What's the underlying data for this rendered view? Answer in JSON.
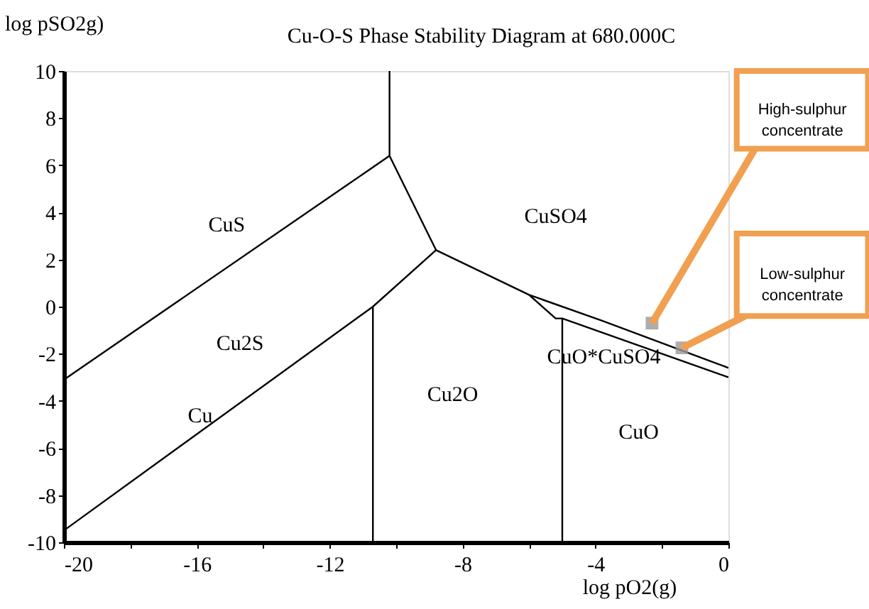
{
  "chart_data": {
    "type": "line",
    "title": "Cu-O-S Phase Stability Diagram at 680.000C",
    "xlabel": "log pO2(g)",
    "ylabel": "log pSO2g)",
    "xlim": [
      -20,
      0
    ],
    "ylim": [
      -10,
      10
    ],
    "xticks": [
      -20,
      {
        "value": -18,
        "label": null
      },
      -16,
      {
        "value": -14,
        "label": null
      },
      -12,
      {
        "value": -10,
        "label": null
      },
      -8,
      {
        "value": -6,
        "label": null
      },
      -4,
      {
        "value": -2,
        "label": null
      },
      0
    ],
    "yticks": [
      -10,
      -8,
      -6,
      -4,
      -2,
      0,
      2,
      4,
      6,
      8,
      10
    ],
    "grid": false,
    "series": [
      {
        "color": "#000000",
        "x": [
          -20,
          -10.2
        ],
        "values": [
          -3.1,
          6.4
        ]
      },
      {
        "color": "#000000",
        "x": [
          -10.2,
          -10.2
        ],
        "values": [
          6.4,
          10
        ]
      },
      {
        "color": "#000000",
        "x": [
          -10.2,
          -8.8
        ],
        "values": [
          6.4,
          2.4
        ]
      },
      {
        "color": "#000000",
        "x": [
          -20,
          -10.7,
          -8.8
        ],
        "values": [
          -9.5,
          0.0,
          2.4
        ]
      },
      {
        "color": "#000000",
        "x": [
          -10.7,
          -10.7
        ],
        "values": [
          0.0,
          -10
        ]
      },
      {
        "color": "#000000",
        "x": [
          -8.8,
          -6.0,
          -3.8,
          0
        ],
        "values": [
          2.4,
          0.5,
          -0.6,
          -2.6
        ]
      },
      {
        "color": "#000000",
        "x": [
          -6.0,
          -5.2,
          -5.0,
          -5.0
        ],
        "values": [
          0.5,
          -0.5,
          -0.5,
          -10
        ]
      },
      {
        "color": "#000000",
        "x": [
          -5.0,
          0
        ],
        "values": [
          -0.5,
          -3.0
        ]
      },
      {
        "type": "scatter",
        "name": "High-sulphur concentrate",
        "color": "#999999",
        "marker": "square",
        "x": [
          -2.3
        ],
        "values": [
          -0.7
        ]
      },
      {
        "type": "scatter",
        "name": "Low-sulphur concentrate",
        "color": "#999999",
        "marker": "square",
        "x": [
          -1.4
        ],
        "values": [
          -1.75
        ]
      }
    ],
    "annotations": [
      "CuS",
      "CuSO4",
      "Cu2S",
      "Cu",
      "Cu2O",
      "CuO",
      "CuO*CuSO4"
    ]
  }
}
